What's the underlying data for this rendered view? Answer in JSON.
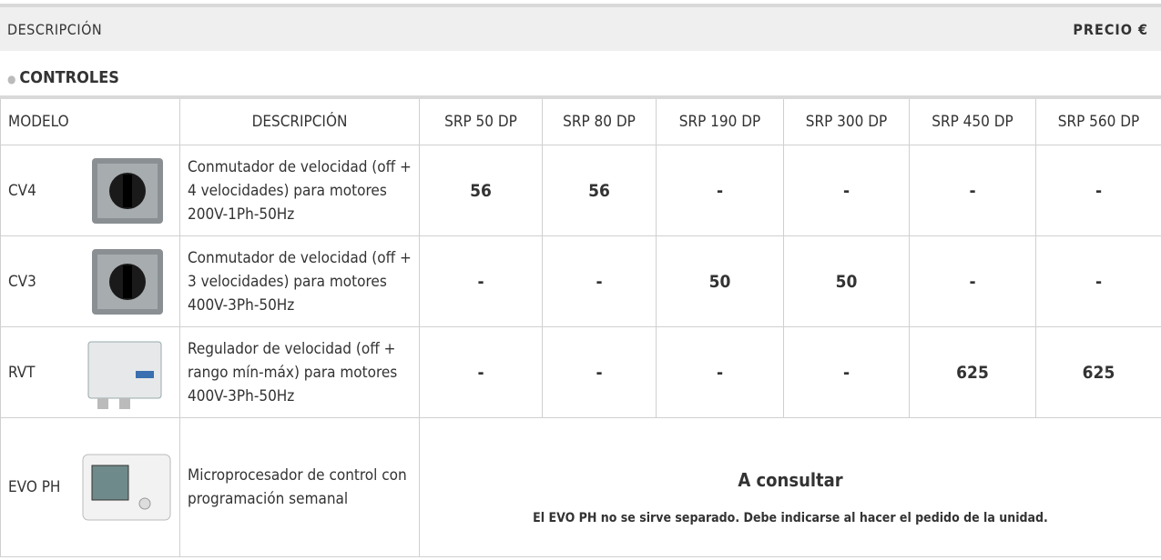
{
  "header": {
    "description": "DESCRIPCIÓN",
    "price": "PRECIO €"
  },
  "section": "CONTROLES",
  "table": {
    "columns": [
      "MODELO",
      "DESCRIPCIÓN",
      "SRP 50 DP",
      "SRP 80 DP",
      "SRP 190 DP",
      "SRP 300 DP",
      "SRP 450 DP",
      "SRP 560 DP"
    ],
    "rows": [
      {
        "model": "CV4",
        "description": "Conmutador de velocidad (off + 4 velocidades) para motores 200V-1Ph-50Hz",
        "prices": [
          56,
          56,
          "-",
          "-",
          "-",
          "-"
        ]
      },
      {
        "model": "CV3",
        "description": "Conmutador de velocidad (off + 3 velocidades) para motores 400V-3Ph-50Hz",
        "prices": [
          "-",
          "-",
          50,
          50,
          "-",
          "-"
        ]
      },
      {
        "model": "RVT",
        "description": "Regulador de velocidad (off + rango mín-máx) para motores 400V-3Ph-50Hz",
        "prices": [
          "-",
          "-",
          "-",
          "-",
          625,
          625
        ]
      },
      {
        "model": "EVO PH",
        "description": "Microprocesador de control con programación semanal",
        "price_title": "A consultar",
        "price_note": "El EVO PH no se sirve separado. Debe indicarse al hacer el pedido de la unidad."
      }
    ]
  }
}
